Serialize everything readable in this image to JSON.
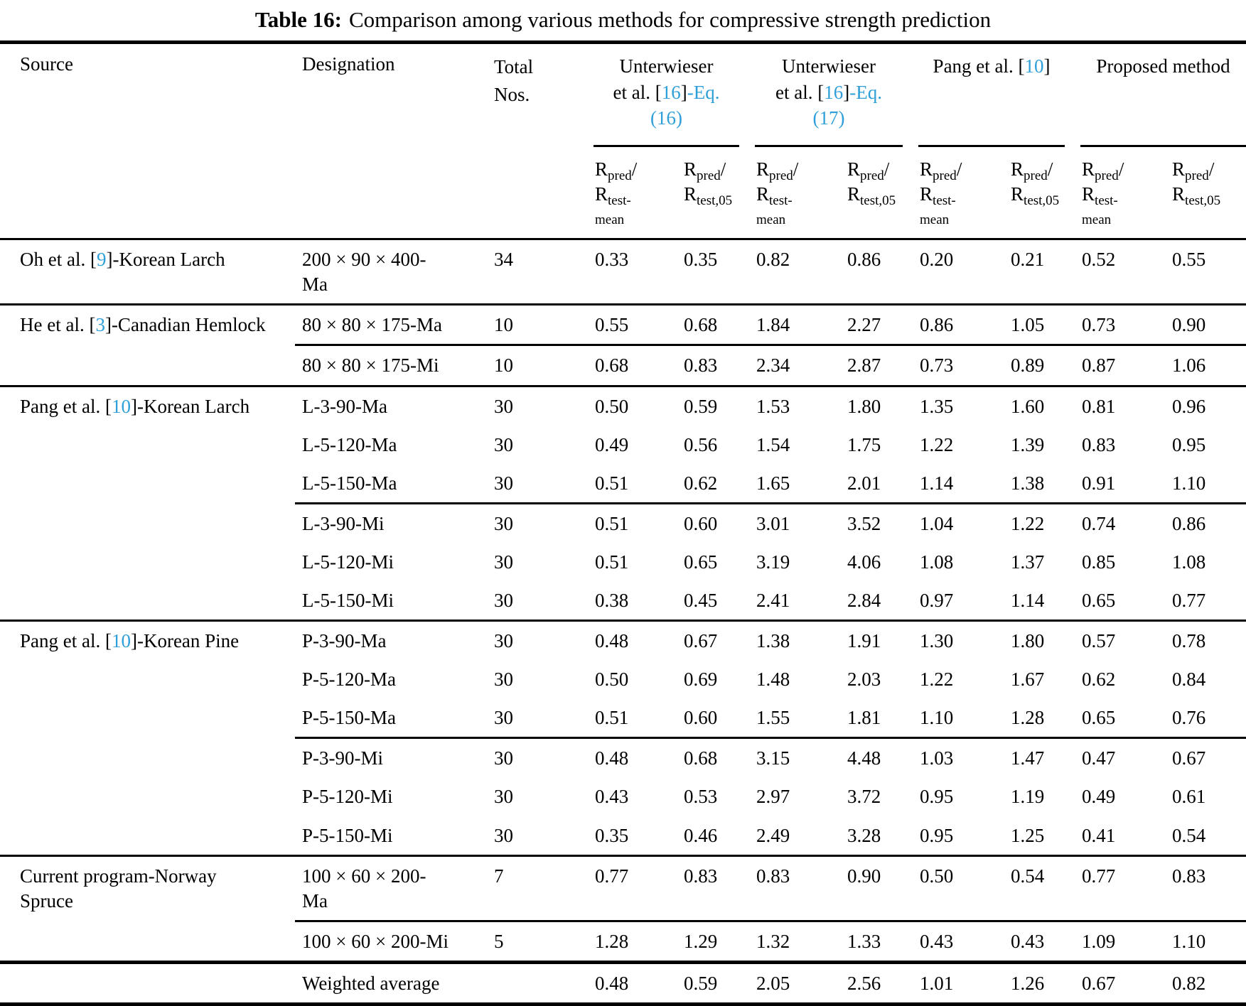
{
  "colors": {
    "accent_blue": "#2f9fd9"
  },
  "title": {
    "label": "Table 16:",
    "text": "Comparison among various methods for compressive strength prediction"
  },
  "header": {
    "source": "Source",
    "designation": "Designation",
    "total_l1": "Total",
    "total_l2": "Nos.",
    "g1": {
      "l1": "Unterwieser",
      "l2a": "et al. [",
      "l2b": "16",
      "l2c": "]",
      "l2d": "-Eq.",
      "l3": "(16)"
    },
    "g2": {
      "l1": "Unterwieser",
      "l2a": "et al. [",
      "l2b": "16",
      "l2c": "]",
      "l2d": "-Eq.",
      "l3": "(17)"
    },
    "g3": {
      "a": "Pang et al. [",
      "b": "10",
      "c": "]"
    },
    "g4": {
      "a": "Proposed method"
    },
    "sub": {
      "r": "R",
      "pred": "pred",
      "slash": "/",
      "test_mean": "test-",
      "mean": "mean",
      "test_05": "test,05"
    }
  },
  "rows": [
    {
      "src_a": "Oh et al. [",
      "src_b": "9",
      "src_c": "]-Korean Larch",
      "desig": "200 × 90 × 400-",
      "desig_l2": "Ma",
      "total": "34",
      "vals": [
        "0.33",
        "0.35",
        "0.82",
        "0.86",
        "0.20",
        "0.21",
        "0.52",
        "0.55"
      ]
    },
    {
      "src_a": "He et al. [",
      "src_b": "3",
      "src_c": "]-Canadian Hemlock",
      "desig": "80 × 80 × 175-Ma",
      "total": "10",
      "vals": [
        "0.55",
        "0.68",
        "1.84",
        "2.27",
        "0.86",
        "1.05",
        "0.73",
        "0.90"
      ]
    },
    {
      "desig": "80 × 80 × 175-Mi",
      "total": "10",
      "vals": [
        "0.68",
        "0.83",
        "2.34",
        "2.87",
        "0.73",
        "0.89",
        "0.87",
        "1.06"
      ]
    },
    {
      "src_a": "Pang et al. [",
      "src_b": "10",
      "src_c": "]-Korean Larch",
      "desig": "L-3-90-Ma",
      "total": "30",
      "vals": [
        "0.50",
        "0.59",
        "1.53",
        "1.80",
        "1.35",
        "1.60",
        "0.81",
        "0.96"
      ]
    },
    {
      "desig": "L-5-120-Ma",
      "total": "30",
      "vals": [
        "0.49",
        "0.56",
        "1.54",
        "1.75",
        "1.22",
        "1.39",
        "0.83",
        "0.95"
      ]
    },
    {
      "desig": "L-5-150-Ma",
      "total": "30",
      "vals": [
        "0.51",
        "0.62",
        "1.65",
        "2.01",
        "1.14",
        "1.38",
        "0.91",
        "1.10"
      ]
    },
    {
      "desig": "L-3-90-Mi",
      "total": "30",
      "vals": [
        "0.51",
        "0.60",
        "3.01",
        "3.52",
        "1.04",
        "1.22",
        "0.74",
        "0.86"
      ]
    },
    {
      "desig": "L-5-120-Mi",
      "total": "30",
      "vals": [
        "0.51",
        "0.65",
        "3.19",
        "4.06",
        "1.08",
        "1.37",
        "0.85",
        "1.08"
      ]
    },
    {
      "desig": "L-5-150-Mi",
      "total": "30",
      "vals": [
        "0.38",
        "0.45",
        "2.41",
        "2.84",
        "0.97",
        "1.14",
        "0.65",
        "0.77"
      ]
    },
    {
      "src_a": "Pang et al. [",
      "src_b": "10",
      "src_c": "]-Korean Pine",
      "desig": "P-3-90-Ma",
      "total": "30",
      "vals": [
        "0.48",
        "0.67",
        "1.38",
        "1.91",
        "1.30",
        "1.80",
        "0.57",
        "0.78"
      ]
    },
    {
      "desig": "P-5-120-Ma",
      "total": "30",
      "vals": [
        "0.50",
        "0.69",
        "1.48",
        "2.03",
        "1.22",
        "1.67",
        "0.62",
        "0.84"
      ]
    },
    {
      "desig": "P-5-150-Ma",
      "total": "30",
      "vals": [
        "0.51",
        "0.60",
        "1.55",
        "1.81",
        "1.10",
        "1.28",
        "0.65",
        "0.76"
      ]
    },
    {
      "desig": "P-3-90-Mi",
      "total": "30",
      "vals": [
        "0.48",
        "0.68",
        "3.15",
        "4.48",
        "1.03",
        "1.47",
        "0.47",
        "0.67"
      ]
    },
    {
      "desig": "P-5-120-Mi",
      "total": "30",
      "vals": [
        "0.43",
        "0.53",
        "2.97",
        "3.72",
        "0.95",
        "1.19",
        "0.49",
        "0.61"
      ]
    },
    {
      "desig": "P-5-150-Mi",
      "total": "30",
      "vals": [
        "0.35",
        "0.46",
        "2.49",
        "3.28",
        "0.95",
        "1.25",
        "0.41",
        "0.54"
      ]
    },
    {
      "src_a": "Current program-Norway",
      "src_l2": "Spruce",
      "desig": "100 × 60 × 200-",
      "desig_l2": "Ma",
      "total": "7",
      "vals": [
        "0.77",
        "0.83",
        "0.83",
        "0.90",
        "0.50",
        "0.54",
        "0.77",
        "0.83"
      ]
    },
    {
      "desig": "100 × 60 × 200-Mi",
      "total": "5",
      "vals": [
        "1.28",
        "1.29",
        "1.32",
        "1.33",
        "0.43",
        "0.43",
        "1.09",
        "1.10"
      ]
    },
    {
      "desig": "Weighted average",
      "total": "",
      "vals": [
        "0.48",
        "0.59",
        "2.05",
        "2.56",
        "1.01",
        "1.26",
        "0.67",
        "0.82"
      ]
    }
  ]
}
